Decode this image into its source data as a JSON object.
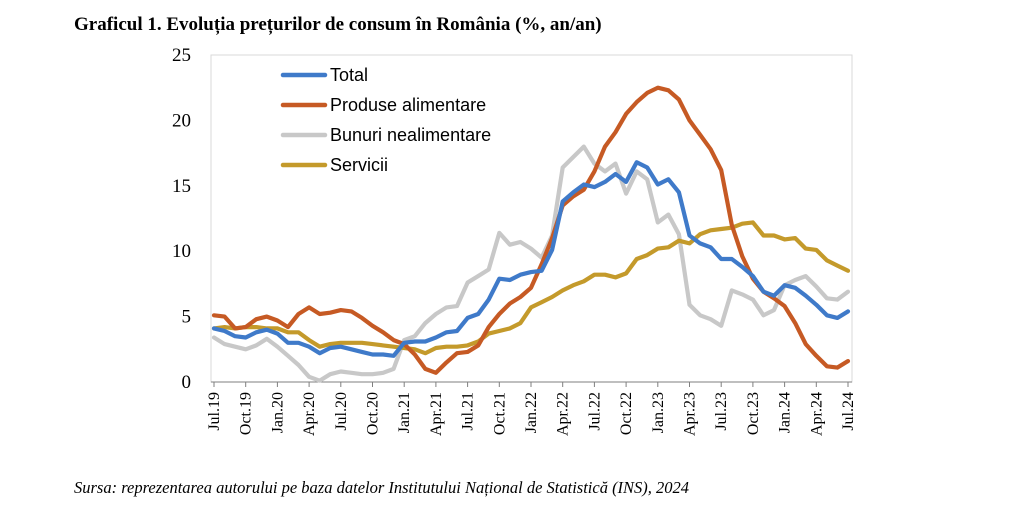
{
  "chart_data": {
    "type": "line",
    "title": "Graficul 1. Evoluția prețurilor de consum în România (%, an/an)",
    "source": "Sursa: reprezentarea autorului pe baza datelor Institutului Național de Statistică (INS), 2024",
    "x": [
      "Jul.19",
      "Aug.19",
      "Sep.19",
      "Oct.19",
      "Nov.19",
      "Dec.19",
      "Jan.20",
      "Feb.20",
      "Mar.20",
      "Apr.20",
      "May.20",
      "Jun.20",
      "Jul.20",
      "Aug.20",
      "Sep.20",
      "Oct.20",
      "Nov.20",
      "Dec.20",
      "Jan.21",
      "Feb.21",
      "Mar.21",
      "Apr.21",
      "May.21",
      "Jun.21",
      "Jul.21",
      "Aug.21",
      "Sep.21",
      "Oct.21",
      "Nov.21",
      "Dec.21",
      "Jan.22",
      "Feb.22",
      "Mar.22",
      "Apr.22",
      "May.22",
      "Jun.22",
      "Jul.22",
      "Aug.22",
      "Sep.22",
      "Oct.22",
      "Nov.22",
      "Dec.22",
      "Jan.23",
      "Feb.23",
      "Mar.23",
      "Apr.23",
      "May.23",
      "Jun.23",
      "Jul.23",
      "Aug.23",
      "Sep.23",
      "Oct.23",
      "Nov.23",
      "Dec.23",
      "Jan.24",
      "Feb.24",
      "Mar.24",
      "Apr.24",
      "May.24",
      "Jun.24",
      "Jul.24"
    ],
    "x_tick_labels": [
      "Jul.19",
      "Oct.19",
      "Jan.20",
      "Apr.20",
      "Jul.20",
      "Oct.20",
      "Jan.21",
      "Apr.21",
      "Jul.21",
      "Oct.21",
      "Jan.22",
      "Apr.22",
      "Jul.22",
      "Oct.22",
      "Jan.23",
      "Apr.23",
      "Jul.23",
      "Oct.23",
      "Jan.24",
      "Apr.24",
      "Jul.24"
    ],
    "y_ticks": [
      0,
      5,
      10,
      15,
      20,
      25
    ],
    "ylim": [
      0,
      25
    ],
    "grid": false,
    "legend_position": "top-left",
    "series": [
      {
        "name": "Total",
        "color": "#3F7AC9",
        "values": [
          4.1,
          3.9,
          3.5,
          3.4,
          3.8,
          4.0,
          3.7,
          3.0,
          3.0,
          2.7,
          2.2,
          2.6,
          2.7,
          2.5,
          2.3,
          2.1,
          2.1,
          2.0,
          3.0,
          3.1,
          3.1,
          3.4,
          3.8,
          3.9,
          4.9,
          5.2,
          6.3,
          7.9,
          7.8,
          8.2,
          8.4,
          8.5,
          10.1,
          13.8,
          14.5,
          15.1,
          14.9,
          15.3,
          15.9,
          15.3,
          16.8,
          16.4,
          15.1,
          15.5,
          14.5,
          11.2,
          10.6,
          10.3,
          9.4,
          9.4,
          8.8,
          8.1,
          6.9,
          6.6,
          7.4,
          7.2,
          6.6,
          5.9,
          5.1,
          4.9,
          5.4
        ]
      },
      {
        "name": "Produse alimentare",
        "color": "#C65A24",
        "values": [
          5.1,
          5.0,
          4.1,
          4.2,
          4.8,
          5.0,
          4.7,
          4.2,
          5.2,
          5.7,
          5.2,
          5.3,
          5.5,
          5.4,
          4.9,
          4.3,
          3.8,
          3.2,
          2.9,
          2.1,
          1.0,
          0.7,
          1.5,
          2.2,
          2.3,
          2.8,
          4.2,
          5.2,
          6.0,
          6.5,
          7.2,
          9.0,
          11.0,
          13.5,
          14.2,
          14.7,
          16.1,
          18.0,
          19.1,
          20.5,
          21.4,
          22.1,
          22.5,
          22.3,
          21.6,
          20.0,
          18.9,
          17.8,
          16.2,
          12.0,
          9.6,
          7.9,
          6.9,
          6.4,
          5.8,
          4.5,
          2.9,
          2.0,
          1.2,
          1.1,
          1.6
        ]
      },
      {
        "name": "Bunuri nealimentare",
        "color": "#C8C8C8",
        "values": [
          3.4,
          2.9,
          2.7,
          2.5,
          2.8,
          3.3,
          2.7,
          2.0,
          1.3,
          0.4,
          0.1,
          0.6,
          0.8,
          0.7,
          0.6,
          0.6,
          0.7,
          1.0,
          3.2,
          3.5,
          4.5,
          5.2,
          5.7,
          5.8,
          7.6,
          8.1,
          8.6,
          11.4,
          10.5,
          10.7,
          10.2,
          9.5,
          11.2,
          16.4,
          17.2,
          18.0,
          16.7,
          16.1,
          16.7,
          14.4,
          16.1,
          15.5,
          12.2,
          12.8,
          11.3,
          5.9,
          5.1,
          4.8,
          4.3,
          7.0,
          6.7,
          6.3,
          5.1,
          5.5,
          7.4,
          7.8,
          8.1,
          7.3,
          6.4,
          6.3,
          6.9
        ]
      },
      {
        "name": "Servicii",
        "color": "#C49A2B",
        "values": [
          4.1,
          4.2,
          4.1,
          4.2,
          4.2,
          4.1,
          4.1,
          3.8,
          3.8,
          3.2,
          2.7,
          2.9,
          3.0,
          3.0,
          3.0,
          2.9,
          2.8,
          2.7,
          2.6,
          2.5,
          2.2,
          2.6,
          2.7,
          2.7,
          2.8,
          3.1,
          3.7,
          3.9,
          4.1,
          4.5,
          5.7,
          6.1,
          6.5,
          7.0,
          7.4,
          7.7,
          8.2,
          8.2,
          8.0,
          8.3,
          9.4,
          9.7,
          10.2,
          10.3,
          10.8,
          10.6,
          11.3,
          11.6,
          11.7,
          11.8,
          12.1,
          12.2,
          11.2,
          11.2,
          10.9,
          11.0,
          10.2,
          10.1,
          9.3,
          8.9,
          8.5
        ]
      }
    ]
  }
}
